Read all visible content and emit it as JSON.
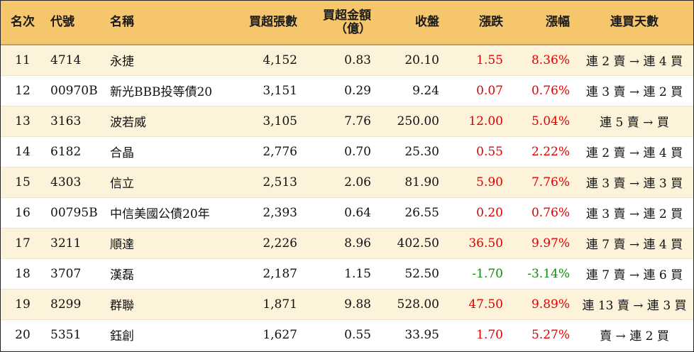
{
  "headers": {
    "rank": "名次",
    "code": "代號",
    "name": "名稱",
    "net_lots": "買超張數",
    "net_amount_line1": "買超金額",
    "net_amount_line2": "（億）",
    "close": "收盤",
    "change": "漲跌",
    "pct": "漲幅",
    "streak": "連買天數"
  },
  "colors": {
    "header_bg": "#f6c66c",
    "row_alt": "#fdf3da",
    "up": "#e00000",
    "down": "#108a10"
  },
  "rows": [
    {
      "rank": "11",
      "code": "4714",
      "name": "永捷",
      "net_lots": "4,152",
      "net_amount": "0.83",
      "close": "20.10",
      "change": "1.55",
      "pct": "8.36%",
      "streak": "連 2 賣 → 連 4 買",
      "dir": "up"
    },
    {
      "rank": "12",
      "code": "00970B",
      "name": "新光BBB投等債20",
      "net_lots": "3,151",
      "net_amount": "0.29",
      "close": "9.24",
      "change": "0.07",
      "pct": "0.76%",
      "streak": "連 3 賣 → 連 2 買",
      "dir": "up"
    },
    {
      "rank": "13",
      "code": "3163",
      "name": "波若威",
      "net_lots": "3,105",
      "net_amount": "7.76",
      "close": "250.00",
      "change": "12.00",
      "pct": "5.04%",
      "streak": "連 5 賣 → 買",
      "dir": "up"
    },
    {
      "rank": "14",
      "code": "6182",
      "name": "合晶",
      "net_lots": "2,776",
      "net_amount": "0.70",
      "close": "25.30",
      "change": "0.55",
      "pct": "2.22%",
      "streak": "連 2 賣 → 連 4 買",
      "dir": "up"
    },
    {
      "rank": "15",
      "code": "4303",
      "name": "信立",
      "net_lots": "2,513",
      "net_amount": "2.06",
      "close": "81.90",
      "change": "5.90",
      "pct": "7.76%",
      "streak": "連 3 賣 → 連 3 買",
      "dir": "up"
    },
    {
      "rank": "16",
      "code": "00795B",
      "name": "中信美國公債20年",
      "net_lots": "2,393",
      "net_amount": "0.64",
      "close": "26.55",
      "change": "0.20",
      "pct": "0.76%",
      "streak": "連 3 賣 → 連 2 買",
      "dir": "up"
    },
    {
      "rank": "17",
      "code": "3211",
      "name": "順達",
      "net_lots": "2,226",
      "net_amount": "8.96",
      "close": "402.50",
      "change": "36.50",
      "pct": "9.97%",
      "streak": "連 7 賣 → 連 4 買",
      "dir": "up"
    },
    {
      "rank": "18",
      "code": "3707",
      "name": "漢磊",
      "net_lots": "2,187",
      "net_amount": "1.15",
      "close": "52.50",
      "change": "-1.70",
      "pct": "-3.14%",
      "streak": "連 7 賣 → 連 6 買",
      "dir": "down"
    },
    {
      "rank": "19",
      "code": "8299",
      "name": "群聯",
      "net_lots": "1,871",
      "net_amount": "9.88",
      "close": "528.00",
      "change": "47.50",
      "pct": "9.89%",
      "streak": "連 13 賣 → 連 3 買",
      "dir": "up"
    },
    {
      "rank": "20",
      "code": "5351",
      "name": "鈺創",
      "net_lots": "1,627",
      "net_amount": "0.55",
      "close": "33.95",
      "change": "1.70",
      "pct": "5.27%",
      "streak": "賣 → 連 2 買",
      "dir": "up"
    }
  ]
}
